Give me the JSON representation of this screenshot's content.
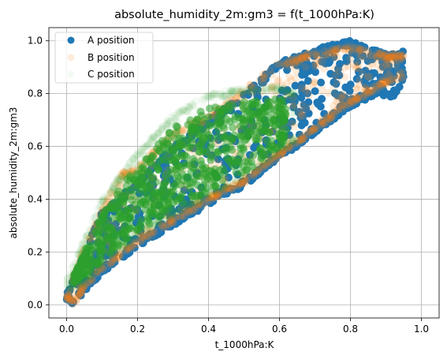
{
  "chart_data": {
    "type": "scatter",
    "title": "absolute_humidity_2m:gm3 = f(t_1000hPa:K)",
    "xlabel": "t_1000hPa:K",
    "ylabel": "absolute_humidity_2m:gm3",
    "xlim": [
      -0.05,
      1.05
    ],
    "ylim": [
      -0.05,
      1.05
    ],
    "xticks": [
      0.0,
      0.2,
      0.4,
      0.6,
      0.8,
      1.0
    ],
    "yticks": [
      0.0,
      0.2,
      0.4,
      0.6,
      0.8,
      1.0
    ],
    "xtick_labels": [
      "0.0",
      "0.2",
      "0.4",
      "0.6",
      "0.8",
      "1.0"
    ],
    "ytick_labels": [
      "0.0",
      "0.2",
      "0.4",
      "0.6",
      "0.8",
      "1.0"
    ],
    "grid": true,
    "legend_position": "top-left",
    "series": [
      {
        "name": "A position",
        "color": "#1f77b4",
        "opacity": 1.0,
        "lower_envelope": [
          [
            0.0,
            0.02
          ],
          [
            0.02,
            0.0
          ],
          [
            0.05,
            0.05
          ],
          [
            0.1,
            0.12
          ],
          [
            0.15,
            0.17
          ],
          [
            0.2,
            0.22
          ],
          [
            0.3,
            0.3
          ],
          [
            0.4,
            0.38
          ],
          [
            0.5,
            0.45
          ],
          [
            0.6,
            0.55
          ],
          [
            0.7,
            0.65
          ],
          [
            0.8,
            0.75
          ],
          [
            0.88,
            0.8
          ],
          [
            0.92,
            0.78
          ],
          [
            0.95,
            0.85
          ]
        ],
        "upper_envelope": [
          [
            0.0,
            0.04
          ],
          [
            0.05,
            0.2
          ],
          [
            0.1,
            0.35
          ],
          [
            0.2,
            0.47
          ],
          [
            0.3,
            0.6
          ],
          [
            0.4,
            0.7
          ],
          [
            0.5,
            0.8
          ],
          [
            0.6,
            0.92
          ],
          [
            0.7,
            0.97
          ],
          [
            0.8,
            1.0
          ],
          [
            0.9,
            0.95
          ],
          [
            1.0,
            0.97
          ]
        ]
      },
      {
        "name": "B position",
        "color": "#ff7f0e",
        "opacity": 0.15,
        "lower_envelope": [
          [
            0.0,
            0.02
          ],
          [
            0.02,
            0.0
          ],
          [
            0.05,
            0.06
          ],
          [
            0.1,
            0.13
          ],
          [
            0.15,
            0.18
          ],
          [
            0.2,
            0.23
          ],
          [
            0.3,
            0.31
          ],
          [
            0.4,
            0.39
          ],
          [
            0.5,
            0.46
          ],
          [
            0.6,
            0.56
          ],
          [
            0.7,
            0.66
          ],
          [
            0.8,
            0.76
          ],
          [
            0.88,
            0.82
          ],
          [
            0.95,
            0.86
          ]
        ],
        "upper_envelope": [
          [
            0.0,
            0.04
          ],
          [
            0.05,
            0.22
          ],
          [
            0.1,
            0.36
          ],
          [
            0.15,
            0.5
          ],
          [
            0.2,
            0.52
          ],
          [
            0.3,
            0.66
          ],
          [
            0.4,
            0.72
          ],
          [
            0.5,
            0.82
          ],
          [
            0.6,
            0.92
          ],
          [
            0.7,
            0.96
          ],
          [
            0.8,
            0.98
          ],
          [
            0.9,
            0.95
          ],
          [
            1.0,
            0.97
          ]
        ]
      },
      {
        "name": "C position",
        "color": "#2ca02c",
        "opacity": 0.05,
        "lower_envelope": [
          [
            0.0,
            0.05
          ],
          [
            0.05,
            0.08
          ],
          [
            0.1,
            0.15
          ],
          [
            0.2,
            0.26
          ],
          [
            0.3,
            0.34
          ],
          [
            0.4,
            0.41
          ],
          [
            0.5,
            0.48
          ],
          [
            0.6,
            0.58
          ],
          [
            0.65,
            0.62
          ]
        ],
        "upper_envelope": [
          [
            0.0,
            0.1
          ],
          [
            0.05,
            0.25
          ],
          [
            0.1,
            0.4
          ],
          [
            0.2,
            0.58
          ],
          [
            0.3,
            0.72
          ],
          [
            0.4,
            0.8
          ],
          [
            0.5,
            0.82
          ],
          [
            0.6,
            0.83
          ],
          [
            0.65,
            0.8
          ]
        ]
      }
    ]
  }
}
